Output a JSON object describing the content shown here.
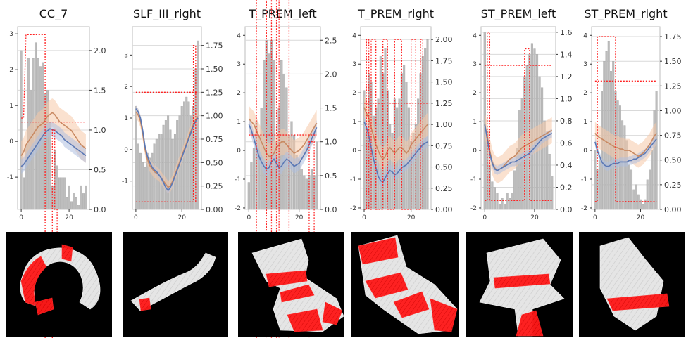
{
  "colors": {
    "bar": "#bdbdbd",
    "bar_edge": "#9a9a9a",
    "mean_line": "#c98a63",
    "mean_band": "#f5c9a8",
    "subject_line": "#5a78b5",
    "subject_band": "#aebfe0",
    "marker_line": "#ff2020",
    "grid": "#d9d9d9"
  },
  "chart_data": [
    {
      "type": "bar",
      "title": "CC_7",
      "x": {
        "ticks": [
          0,
          20
        ],
        "range": [
          -1.5,
          28.5
        ]
      },
      "y_left": {
        "ticks": [
          -1,
          0,
          1,
          2,
          3
        ],
        "range": [
          -1.9,
          3.2
        ]
      },
      "y_right": {
        "ticks": [
          "0.0",
          "0.5",
          "1.0",
          "1.5",
          "2.0"
        ],
        "range": [
          0,
          2.3
        ]
      },
      "bars": [
        2.0,
        0.4,
        0.8,
        1.9,
        1.5,
        1.9,
        2.1,
        1.9,
        1.8,
        1.85,
        1.45,
        1.5,
        1.1,
        0.3,
        0.75,
        0.55,
        0.4,
        0.4,
        0.4,
        0.15,
        0.3,
        0.1,
        0.2,
        0.15,
        0.05,
        0.3,
        0.2,
        0.3
      ],
      "mean_line": [
        -0.4,
        -0.3,
        -0.1,
        0.0,
        0.1,
        0.2,
        0.3,
        0.4,
        0.45,
        0.5,
        0.6,
        0.7,
        0.75,
        0.8,
        0.75,
        0.65,
        0.55,
        0.5,
        0.45,
        0.4,
        0.35,
        0.3,
        0.2,
        0.1,
        0.0,
        -0.1,
        -0.15,
        -0.2
      ],
      "mean_band": 0.4,
      "subject_line": [
        -0.7,
        -0.65,
        -0.55,
        -0.45,
        -0.35,
        -0.25,
        -0.15,
        -0.05,
        0.05,
        0.15,
        0.25,
        0.3,
        0.35,
        0.33,
        0.3,
        0.25,
        0.2,
        0.15,
        0.05,
        0.0,
        -0.05,
        -0.1,
        -0.15,
        -0.2,
        -0.25,
        -0.3,
        -0.35,
        -0.4
      ],
      "subject_band": 0.2,
      "threshold": 1.1,
      "threshold_span": [
        0,
        27
      ],
      "markers": [
        [
          0,
          1.15
        ],
        [
          1,
          1.15
        ],
        [
          2,
          2.2
        ],
        [
          3,
          2.2
        ],
        [
          9,
          2.2
        ],
        [
          10,
          2.2
        ],
        [
          10,
          -1.75
        ],
        [
          13,
          -1.75
        ],
        [
          13,
          1.0
        ],
        [
          14,
          1.0
        ],
        [
          14,
          0.0
        ],
        [
          15,
          0.0
        ],
        [
          15,
          -1.75
        ],
        [
          25,
          -1.75
        ]
      ]
    },
    {
      "type": "bar",
      "title": "SLF_III_right",
      "x": {
        "ticks": [
          0,
          20
        ],
        "range": [
          -1.5,
          28.5
        ]
      },
      "y_left": {
        "ticks": [
          -1,
          0,
          1,
          2,
          3
        ],
        "range": [
          -1.9,
          3.9
        ]
      },
      "y_right": {
        "ticks": [
          "0.00",
          "0.25",
          "0.50",
          "0.75",
          "1.00",
          "1.25",
          "1.50",
          "1.75"
        ],
        "range": [
          0,
          1.95
        ]
      },
      "bars": [
        1.1,
        0.7,
        0.6,
        0.5,
        0.45,
        0.6,
        0.55,
        0.6,
        0.7,
        0.75,
        0.8,
        0.8,
        0.9,
        0.95,
        1.0,
        0.85,
        0.75,
        0.8,
        0.95,
        1.0,
        1.1,
        1.15,
        1.2,
        1.15,
        1.0,
        1.1,
        1.5,
        1.8
      ],
      "mean_line": [
        1.2,
        1.1,
        0.9,
        0.5,
        0.0,
        -0.3,
        -0.5,
        -0.6,
        -0.7,
        -0.75,
        -0.8,
        -0.9,
        -1.0,
        -1.1,
        -1.2,
        -1.15,
        -1.0,
        -0.8,
        -0.6,
        -0.4,
        -0.2,
        0.0,
        0.2,
        0.4,
        0.6,
        0.8,
        0.95,
        1.05
      ],
      "mean_band": 0.2,
      "subject_line": [
        1.3,
        1.2,
        1.0,
        0.6,
        0.1,
        -0.2,
        -0.4,
        -0.55,
        -0.65,
        -0.7,
        -0.8,
        -0.9,
        -1.05,
        -1.2,
        -1.3,
        -1.2,
        -1.05,
        -0.85,
        -0.65,
        -0.45,
        -0.25,
        -0.05,
        0.15,
        0.35,
        0.55,
        0.75,
        0.9,
        1.0
      ],
      "subject_band": 0.1,
      "threshold": 1.25,
      "threshold_span": [
        0,
        27
      ],
      "markers": [
        [
          0,
          0.08
        ],
        [
          25,
          0.08
        ],
        [
          25,
          1.75
        ],
        [
          26,
          1.75
        ],
        [
          26,
          0.08
        ]
      ]
    },
    {
      "type": "bar",
      "title": "T_PREM_left",
      "x": {
        "ticks": [
          0,
          20
        ],
        "range": [
          -1.5,
          28.5
        ]
      },
      "y_left": {
        "ticks": [
          -2,
          -1,
          0,
          1,
          2,
          3,
          4
        ],
        "range": [
          -2.05,
          4.3
        ]
      },
      "y_right": {
        "ticks": [
          "0.0",
          "0.5",
          "1.0",
          "1.5",
          "2.0",
          "2.5"
        ],
        "range": [
          0,
          2.7
        ]
      },
      "bars": [
        0.4,
        0.7,
        0.9,
        1.3,
        1.1,
        1.5,
        2.2,
        2.5,
        2.3,
        2.5,
        2.2,
        1.0,
        1.5,
        2.2,
        2.0,
        1.8,
        1.1,
        1.3,
        1.1,
        0.8,
        0.75,
        0.6,
        0.5,
        0.45,
        0.5,
        0.6,
        0.5,
        1.0
      ],
      "mean_line": [
        1.1,
        1.0,
        0.9,
        0.7,
        0.5,
        0.3,
        0.1,
        -0.1,
        -0.2,
        -0.2,
        -0.1,
        0.1,
        0.2,
        0.3,
        0.3,
        0.2,
        0.1,
        0.0,
        -0.1,
        -0.05,
        0.0,
        0.1,
        0.2,
        0.35,
        0.5,
        0.65,
        0.8,
        0.95
      ],
      "mean_band": 0.45,
      "subject_line": [
        0.9,
        0.7,
        0.4,
        0.1,
        -0.2,
        -0.4,
        -0.55,
        -0.65,
        -0.6,
        -0.4,
        -0.3,
        -0.45,
        -0.6,
        -0.55,
        -0.4,
        -0.3,
        -0.35,
        -0.45,
        -0.55,
        -0.5,
        -0.45,
        -0.3,
        -0.15,
        0.0,
        0.2,
        0.4,
        0.6,
        0.8
      ],
      "subject_band": 0.25,
      "threshold": 1.1,
      "threshold_span": [
        0,
        27
      ],
      "markers": [
        [
          0,
          -2.0
        ],
        [
          3,
          -2.0
        ],
        [
          3,
          4.0
        ],
        [
          7,
          4.0
        ],
        [
          7,
          -2.0
        ],
        [
          9,
          -2.0
        ],
        [
          9,
          4.0
        ],
        [
          11,
          4.0
        ],
        [
          11,
          -2.0
        ],
        [
          12,
          -2.0
        ],
        [
          12,
          4.0
        ],
        [
          16,
          4.0
        ],
        [
          16,
          -2.0
        ],
        [
          24,
          -2.0
        ],
        [
          24,
          1.0
        ],
        [
          26,
          1.0
        ],
        [
          26,
          -2.0
        ]
      ]
    },
    {
      "type": "bar",
      "title": "T_PREM_right",
      "x": {
        "ticks": [
          0,
          20
        ],
        "range": [
          -1.5,
          28.5
        ]
      },
      "y_left": {
        "ticks": [
          -2,
          -1,
          0,
          1,
          2,
          3,
          4
        ],
        "range": [
          -2.05,
          4.3
        ]
      },
      "y_right": {
        "ticks": [
          "0.00",
          "0.25",
          "0.50",
          "0.75",
          "1.00",
          "1.25",
          "1.50",
          "1.75",
          "2.00"
        ],
        "range": [
          0,
          2.15
        ]
      },
      "bars": [
        1.4,
        0.9,
        1.6,
        1.5,
        1.1,
        1.2,
        1.3,
        1.8,
        1.6,
        1.9,
        1.4,
        1.0,
        0.9,
        1.3,
        1.2,
        1.3,
        1.6,
        1.7,
        1.5,
        1.2,
        0.8,
        0.9,
        1.0,
        1.3,
        1.6,
        1.8,
        1.9,
        2.0
      ],
      "mean_line": [
        1.5,
        1.3,
        1.1,
        0.8,
        0.5,
        0.2,
        0.0,
        -0.2,
        -0.3,
        -0.2,
        0.0,
        0.1,
        0.0,
        -0.1,
        0.0,
        0.1,
        0.1,
        0.0,
        -0.1,
        0.0,
        0.2,
        0.3,
        0.4,
        0.5,
        0.6,
        0.7,
        0.8,
        0.9
      ],
      "mean_band": 0.4,
      "subject_line": [
        1.0,
        0.8,
        0.5,
        0.1,
        -0.3,
        -0.6,
        -0.9,
        -1.05,
        -1.1,
        -0.95,
        -0.8,
        -0.7,
        -0.75,
        -0.85,
        -0.8,
        -0.7,
        -0.6,
        -0.55,
        -0.5,
        -0.4,
        -0.3,
        -0.2,
        -0.1,
        0.0,
        0.1,
        0.2,
        0.25,
        0.3
      ],
      "subject_band": 0.2,
      "threshold": 1.25,
      "threshold_span": [
        0,
        27
      ],
      "markers": [
        [
          0,
          0.0
        ],
        [
          1,
          0.0
        ],
        [
          1,
          2.0
        ],
        [
          2,
          2.0
        ],
        [
          2,
          0.0
        ],
        [
          3,
          0.0
        ],
        [
          3,
          2.0
        ],
        [
          5,
          2.0
        ],
        [
          5,
          0.0
        ],
        [
          8,
          0.0
        ],
        [
          8,
          2.0
        ],
        [
          10,
          2.0
        ],
        [
          10,
          0.0
        ],
        [
          13,
          0.0
        ],
        [
          13,
          2.0
        ],
        [
          16,
          2.0
        ],
        [
          16,
          0.0
        ],
        [
          20,
          0.0
        ],
        [
          20,
          2.0
        ],
        [
          22,
          2.0
        ],
        [
          22,
          0.0
        ],
        [
          24,
          0.0
        ],
        [
          24,
          2.0
        ],
        [
          25,
          2.0
        ],
        [
          25,
          0.0
        ]
      ]
    },
    {
      "type": "bar",
      "title": "ST_PREM_left",
      "x": {
        "ticks": [
          0,
          20
        ],
        "range": [
          -1.5,
          28.5
        ]
      },
      "y_left": {
        "ticks": [
          -2,
          -1,
          0,
          1,
          2,
          3,
          4
        ],
        "range": [
          -2.05,
          4.3
        ]
      },
      "y_right": {
        "ticks": [
          "0.0",
          "0.2",
          "0.4",
          "0.6",
          "0.8",
          "1.0",
          "1.2",
          "1.4",
          "1.6"
        ],
        "range": [
          0,
          1.65
        ]
      },
      "bars": [
        1.6,
        0.7,
        0.4,
        0.25,
        0.2,
        0.15,
        0.05,
        0.1,
        0.05,
        0.15,
        0.1,
        0.15,
        0.35,
        0.55,
        0.9,
        1.0,
        1.2,
        1.3,
        1.4,
        1.5,
        1.45,
        1.4,
        1.2,
        1.1,
        0.8,
        0.7,
        0.5,
        0.3
      ],
      "mean_line": [
        0.9,
        0.5,
        0.0,
        -0.4,
        -0.6,
        -0.7,
        -0.65,
        -0.6,
        -0.5,
        -0.4,
        -0.3,
        -0.25,
        -0.2,
        -0.1,
        0.0,
        0.1,
        0.15,
        0.2,
        0.25,
        0.3,
        0.35,
        0.4,
        0.45,
        0.5,
        0.55,
        0.6,
        0.65,
        0.7
      ],
      "mean_band": 0.45,
      "subject_line": [
        0.9,
        0.4,
        -0.1,
        -0.45,
        -0.65,
        -0.7,
        -0.65,
        -0.6,
        -0.55,
        -0.5,
        -0.45,
        -0.4,
        -0.4,
        -0.35,
        -0.3,
        -0.25,
        -0.2,
        -0.15,
        -0.1,
        0.0,
        0.1,
        0.2,
        0.3,
        0.4,
        0.45,
        0.5,
        0.55,
        0.6
      ],
      "subject_band": 0.15,
      "threshold": 1.3,
      "threshold_span": [
        0,
        27
      ],
      "markers": [
        [
          0,
          0.08
        ],
        [
          1,
          0.08
        ],
        [
          1,
          1.6
        ],
        [
          2,
          1.6
        ],
        [
          2,
          0.08
        ],
        [
          16,
          0.08
        ],
        [
          16,
          1.45
        ],
        [
          18,
          1.45
        ],
        [
          18,
          0.08
        ],
        [
          27,
          0.08
        ]
      ]
    },
    {
      "type": "bar",
      "title": "ST_PREM_right",
      "x": {
        "ticks": [
          0,
          20
        ],
        "range": [
          -1.5,
          28.5
        ]
      },
      "y_left": {
        "ticks": [
          -2,
          -1,
          0,
          1,
          2,
          3,
          4
        ],
        "range": [
          -2.05,
          4.3
        ]
      },
      "y_right": {
        "ticks": [
          "0.00",
          "0.25",
          "0.50",
          "0.75",
          "1.00",
          "1.25",
          "1.50",
          "1.75"
        ],
        "range": [
          0,
          1.85
        ]
      },
      "bars": [
        0.6,
        0.4,
        0.5,
        1.2,
        1.5,
        1.6,
        1.7,
        1.4,
        1.5,
        1.2,
        1.1,
        1.05,
        0.9,
        0.85,
        0.7,
        0.45,
        0.4,
        0.2,
        0.25,
        0.15,
        0.1,
        0.05,
        0.1,
        0.3,
        0.4,
        0.6,
        1.0,
        1.2
      ],
      "mean_line": [
        0.6,
        0.5,
        0.45,
        0.4,
        0.35,
        0.3,
        0.25,
        0.2,
        0.15,
        0.1,
        0.1,
        0.05,
        0.05,
        0.0,
        0.0,
        0.0,
        -0.05,
        -0.1,
        -0.15,
        -0.2,
        -0.15,
        -0.1,
        0.0,
        0.1,
        0.2,
        0.35,
        0.5,
        0.6
      ],
      "mean_band": 0.4,
      "subject_line": [
        0.3,
        0.0,
        -0.2,
        -0.4,
        -0.5,
        -0.55,
        -0.55,
        -0.5,
        -0.45,
        -0.45,
        -0.45,
        -0.4,
        -0.4,
        -0.4,
        -0.4,
        -0.35,
        -0.35,
        -0.3,
        -0.3,
        -0.25,
        -0.2,
        -0.15,
        -0.1,
        0.0,
        0.1,
        0.2,
        0.3,
        0.4
      ],
      "subject_band": 0.15,
      "threshold": 1.3,
      "threshold_span": [
        0,
        27
      ],
      "markers": [
        [
          0,
          0.08
        ],
        [
          1,
          0.08
        ],
        [
          1,
          1.75
        ],
        [
          2,
          1.75
        ],
        [
          2,
          1.75
        ],
        [
          9,
          1.75
        ],
        [
          9,
          0.08
        ],
        [
          27,
          0.08
        ]
      ]
    }
  ],
  "tract_images": [
    {
      "name": "CC_7",
      "depiction": "cc7"
    },
    {
      "name": "SLF_III_right",
      "depiction": "slf"
    },
    {
      "name": "T_PREM_left",
      "depiction": "tprem_left"
    },
    {
      "name": "T_PREM_right",
      "depiction": "tprem_right"
    },
    {
      "name": "ST_PREM_left",
      "depiction": "stprem_left"
    },
    {
      "name": "ST_PREM_right",
      "depiction": "stprem_right"
    }
  ]
}
